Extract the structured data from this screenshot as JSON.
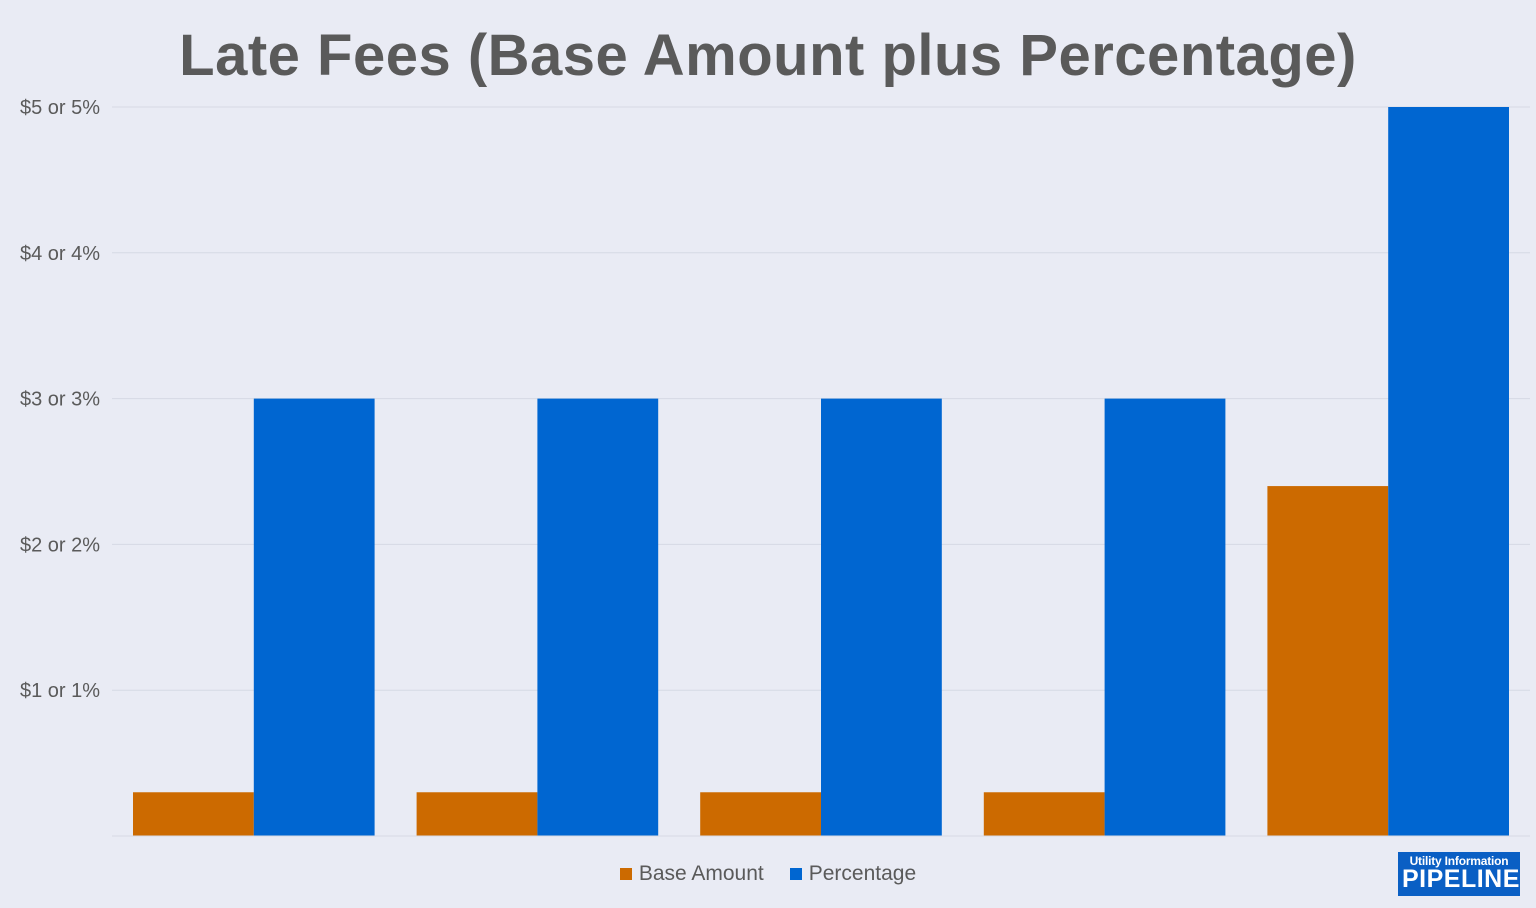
{
  "chart_data": {
    "type": "bar",
    "title": "Late Fees (Base Amount plus Percentage)",
    "xlabel": "",
    "ylabel": "",
    "ylim": [
      0,
      5
    ],
    "y_ticks": [
      {
        "value": 1,
        "label": "$1 or 1%"
      },
      {
        "value": 2,
        "label": "$2 or 2%"
      },
      {
        "value": 3,
        "label": "$3 or 3%"
      },
      {
        "value": 4,
        "label": "$4 or 4%"
      },
      {
        "value": 5,
        "label": "$5 or 5%"
      }
    ],
    "categories": [
      "",
      "",
      "",
      "",
      ""
    ],
    "series": [
      {
        "name": "Base Amount",
        "color": "#cc6a00",
        "values": [
          0.3,
          0.3,
          0.3,
          0.3,
          2.4
        ]
      },
      {
        "name": "Percentage",
        "color": "#0066d1",
        "values": [
          3,
          3,
          3,
          3,
          5
        ]
      }
    ],
    "grid": true,
    "legend_position": "bottom"
  },
  "logo": {
    "line1": "Utility Information",
    "line2": "PIPELINE"
  }
}
